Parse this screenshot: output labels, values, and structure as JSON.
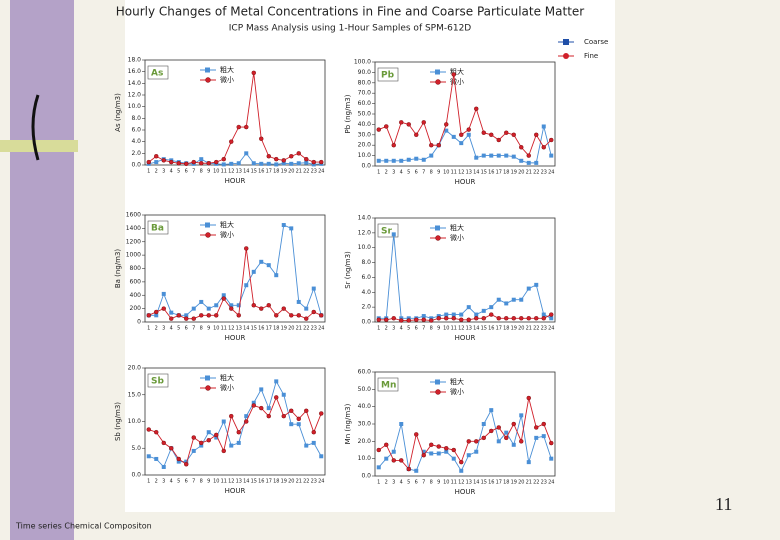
{
  "figure": {
    "title": "Hourly Changes of Metal Concentrations in Fine and Coarse Particulate Matter",
    "subtitle": "ICP Mass Analysis using 1-Hour Samples of SPM-612D",
    "legend": [
      {
        "name": "Coarse",
        "color": "#1f4fa8"
      },
      {
        "name": "Fine",
        "color": "#d0202a"
      }
    ]
  },
  "footer": "Time series Chemical Compositon",
  "page_number": "11",
  "chart_data": [
    {
      "type": "line",
      "label": "As",
      "ylabel": "As (ng/m3)",
      "xlabel": "HOUR",
      "categories": [
        1,
        2,
        3,
        4,
        5,
        6,
        7,
        8,
        9,
        10,
        11,
        12,
        13,
        14,
        15,
        16,
        17,
        18,
        19,
        20,
        21,
        22,
        23,
        24
      ],
      "ylim": [
        0,
        18
      ],
      "yticks": [
        {
          "value": 0,
          "label": "0.0"
        },
        {
          "value": 2,
          "label": "2.0"
        },
        {
          "value": 4,
          "label": "4.0"
        },
        {
          "value": 6,
          "label": "6.0"
        },
        {
          "value": 8,
          "label": "8.0"
        },
        {
          "value": 10,
          "label": "10.0"
        },
        {
          "value": 12,
          "label": "12.0"
        },
        {
          "value": 14,
          "label": "14.0"
        },
        {
          "value": 16,
          "label": "16.0"
        },
        {
          "value": 18,
          "label": "18.0"
        }
      ],
      "series": [
        {
          "name": "粗大",
          "color": "#4a8fd6",
          "values": [
            0.2,
            0.5,
            1.0,
            0.8,
            0.5,
            0.3,
            0.2,
            1.0,
            0.3,
            0.2,
            0.1,
            0.2,
            0.3,
            2.0,
            0.3,
            0.2,
            0.2,
            0.1,
            0.3,
            0.2,
            0.3,
            0.4,
            0.1,
            0.2
          ]
        },
        {
          "name": "微小",
          "color": "#d0202a",
          "values": [
            0.5,
            1.5,
            0.8,
            0.5,
            0.3,
            0.2,
            0.5,
            0.3,
            0.3,
            0.5,
            1.0,
            4.0,
            6.5,
            6.5,
            15.8,
            4.5,
            1.5,
            1.0,
            0.8,
            1.5,
            2.0,
            1.0,
            0.5,
            0.5
          ]
        }
      ]
    },
    {
      "type": "line",
      "label": "Pb",
      "ylabel": "Pb (ng/m3)",
      "xlabel": "HOUR",
      "categories": [
        1,
        2,
        3,
        4,
        5,
        6,
        7,
        8,
        9,
        10,
        11,
        12,
        13,
        14,
        15,
        16,
        17,
        18,
        19,
        20,
        21,
        22,
        23,
        24
      ],
      "ylim": [
        0,
        100
      ],
      "yticks": [
        {
          "value": 0,
          "label": "0.0"
        },
        {
          "value": 10,
          "label": "10.0"
        },
        {
          "value": 20,
          "label": "20.0"
        },
        {
          "value": 30,
          "label": "30.0"
        },
        {
          "value": 40,
          "label": "40.0"
        },
        {
          "value": 50,
          "label": "50.0"
        },
        {
          "value": 60,
          "label": "60.0"
        },
        {
          "value": 70,
          "label": "70.0"
        },
        {
          "value": 80,
          "label": "80.0"
        },
        {
          "value": 90,
          "label": "90.0"
        },
        {
          "value": 100,
          "label": "100.0"
        }
      ],
      "series": [
        {
          "name": "粗大",
          "color": "#4a8fd6",
          "values": [
            5,
            5,
            5,
            5,
            6,
            7,
            6,
            10,
            20,
            34,
            28,
            22,
            30,
            8,
            10,
            10,
            10,
            10,
            9,
            5,
            3,
            3,
            38,
            10
          ]
        },
        {
          "name": "微小",
          "color": "#d0202a",
          "values": [
            35,
            38,
            20,
            42,
            40,
            30,
            42,
            20,
            20,
            40,
            88,
            30,
            35,
            55,
            32,
            30,
            25,
            32,
            30,
            18,
            10,
            30,
            18,
            25
          ]
        }
      ]
    },
    {
      "type": "line",
      "label": "Ba",
      "ylabel": "Ba (ng/m3)",
      "xlabel": "HOUR",
      "categories": [
        1,
        2,
        3,
        4,
        5,
        6,
        7,
        8,
        9,
        10,
        11,
        12,
        13,
        14,
        15,
        16,
        17,
        18,
        19,
        20,
        21,
        22,
        23,
        24
      ],
      "ylim": [
        0,
        1600
      ],
      "yticks": [
        0,
        200,
        400,
        600,
        800,
        1000,
        1200,
        1400,
        1600
      ],
      "series": [
        {
          "name": "粗大",
          "color": "#4a8fd6",
          "values": [
            100,
            100,
            420,
            140,
            100,
            100,
            200,
            300,
            200,
            250,
            400,
            250,
            250,
            550,
            750,
            900,
            850,
            700,
            1450,
            1400,
            300,
            200,
            500,
            100
          ]
        },
        {
          "name": "微小",
          "color": "#d0202a",
          "values": [
            100,
            150,
            200,
            50,
            100,
            50,
            50,
            100,
            100,
            100,
            350,
            200,
            100,
            1100,
            250,
            200,
            250,
            100,
            200,
            100,
            100,
            50,
            150,
            100
          ]
        }
      ]
    },
    {
      "type": "line",
      "label": "Sr",
      "ylabel": "Sr (ng/m3)",
      "xlabel": "HOUR",
      "categories": [
        1,
        2,
        3,
        4,
        5,
        6,
        7,
        8,
        9,
        10,
        11,
        12,
        13,
        14,
        15,
        16,
        17,
        18,
        19,
        20,
        21,
        22,
        23,
        24
      ],
      "ylim": [
        0,
        14
      ],
      "yticks": [
        {
          "value": 0,
          "label": "0.0"
        },
        {
          "value": 2,
          "label": "2.0"
        },
        {
          "value": 4,
          "label": "4.0"
        },
        {
          "value": 6,
          "label": "6.0"
        },
        {
          "value": 8,
          "label": "8.0"
        },
        {
          "value": 10,
          "label": "10.0"
        },
        {
          "value": 12,
          "label": "12.0"
        },
        {
          "value": 14,
          "label": "14.0"
        }
      ],
      "series": [
        {
          "name": "粗大",
          "color": "#4a8fd6",
          "values": [
            0.5,
            0.5,
            11.8,
            0.5,
            0.5,
            0.5,
            0.8,
            0.5,
            0.8,
            1.0,
            1.0,
            1.0,
            2.0,
            1.0,
            1.5,
            2.0,
            3.0,
            2.5,
            3.0,
            3.0,
            4.5,
            5.0,
            1.0,
            0.5
          ]
        },
        {
          "name": "微小",
          "color": "#d0202a",
          "values": [
            0.3,
            0.3,
            0.5,
            0.2,
            0.2,
            0.3,
            0.3,
            0.2,
            0.5,
            0.5,
            0.5,
            0.3,
            0.3,
            0.5,
            0.5,
            1.0,
            0.5,
            0.5,
            0.5,
            0.5,
            0.5,
            0.5,
            0.5,
            1.0
          ]
        }
      ]
    },
    {
      "type": "line",
      "label": "Sb",
      "ylabel": "Sb (ng/m3)",
      "xlabel": "HOUR",
      "categories": [
        1,
        2,
        3,
        4,
        5,
        6,
        7,
        8,
        9,
        10,
        11,
        12,
        13,
        14,
        15,
        16,
        17,
        18,
        19,
        20,
        21,
        22,
        23,
        24
      ],
      "ylim": [
        0,
        20
      ],
      "yticks": [
        {
          "value": 0,
          "label": "0.0"
        },
        {
          "value": 5,
          "label": "5.0"
        },
        {
          "value": 10,
          "label": "10.0"
        },
        {
          "value": 15,
          "label": "15.0"
        },
        {
          "value": 20,
          "label": "20.0"
        }
      ],
      "series": [
        {
          "name": "粗大",
          "color": "#4a8fd6",
          "values": [
            3.5,
            3.0,
            1.5,
            5.0,
            2.5,
            2.5,
            4.5,
            5.5,
            8.0,
            7.0,
            10.0,
            5.5,
            6.0,
            11.0,
            13.5,
            16.0,
            12.5,
            17.5,
            15.0,
            9.5,
            9.5,
            5.5,
            6.0,
            3.5
          ]
        },
        {
          "name": "微小",
          "color": "#d0202a",
          "values": [
            8.5,
            8.0,
            6.0,
            5.0,
            3.0,
            2.0,
            7.0,
            6.0,
            6.5,
            7.5,
            4.5,
            11.0,
            8.0,
            10.0,
            13.0,
            12.5,
            11.0,
            14.5,
            11.0,
            12.0,
            10.5,
            12.0,
            8.0,
            11.5
          ]
        }
      ]
    },
    {
      "type": "line",
      "label": "Mn",
      "ylabel": "Mn (ng/m3)",
      "xlabel": "HOUR",
      "categories": [
        1,
        2,
        3,
        4,
        5,
        6,
        7,
        8,
        9,
        10,
        11,
        12,
        13,
        14,
        15,
        16,
        17,
        18,
        19,
        20,
        21,
        22,
        23,
        24
      ],
      "ylim": [
        0,
        60
      ],
      "yticks": [
        {
          "value": 0,
          "label": "0.0"
        },
        {
          "value": 10,
          "label": "10.0"
        },
        {
          "value": 20,
          "label": "20.0"
        },
        {
          "value": 30,
          "label": "30.0"
        },
        {
          "value": 40,
          "label": "40.0"
        },
        {
          "value": 50,
          "label": "50.0"
        },
        {
          "value": 60,
          "label": "60.0"
        }
      ],
      "series": [
        {
          "name": "粗大",
          "color": "#4a8fd6",
          "values": [
            5,
            10,
            14,
            30,
            4,
            3,
            14,
            13,
            13,
            14,
            10,
            3,
            12,
            14,
            30,
            38,
            20,
            25,
            18,
            35,
            8,
            22,
            23,
            10
          ]
        },
        {
          "name": "微小",
          "color": "#d0202a",
          "values": [
            15,
            18,
            9,
            9,
            4,
            24,
            12,
            18,
            17,
            16,
            15,
            8,
            20,
            20,
            22,
            26,
            28,
            22,
            30,
            20,
            45,
            28,
            30,
            19
          ]
        }
      ]
    }
  ]
}
